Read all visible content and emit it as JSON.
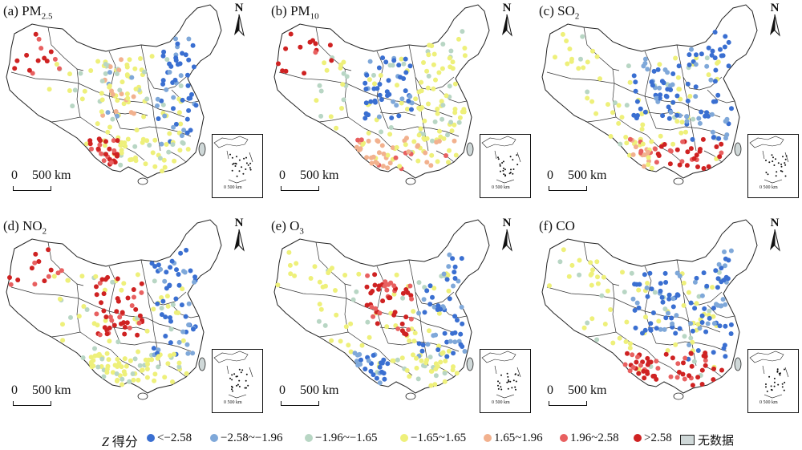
{
  "panels": [
    {
      "id": "a",
      "title_prefix": "(a) PM",
      "title_sub": "2.5",
      "scale_zero": "0",
      "scale_label": "500 km",
      "north_label": "N",
      "inset_label": "0 500 km",
      "zones": {
        "nw": "high",
        "sw": "high",
        "center": "mixed",
        "east": "low",
        "south": "neutral"
      }
    },
    {
      "id": "b",
      "title_prefix": "(b) PM",
      "title_sub": "10",
      "scale_zero": "0",
      "scale_label": "500 km",
      "north_label": "N",
      "inset_label": "0 500 km",
      "zones": {
        "nw": "high",
        "sw": "midhigh",
        "center": "low",
        "east": "neutral",
        "south": "midhigh"
      }
    },
    {
      "id": "c",
      "title_prefix": "(c) SO",
      "title_sub": "2",
      "scale_zero": "0",
      "scale_label": "500 km",
      "north_label": "N",
      "inset_label": "0 500 km",
      "zones": {
        "nw": "neutral",
        "sw": "midhigh",
        "center": "low",
        "east": "low",
        "south": "high"
      }
    },
    {
      "id": "d",
      "title_prefix": "(d) NO",
      "title_sub": "2",
      "scale_zero": "0",
      "scale_label": "500 km",
      "north_label": "N",
      "inset_label": "0 500 km",
      "zones": {
        "nw": "high",
        "sw": "neutral",
        "center": "high",
        "east": "low",
        "south": "neutral"
      }
    },
    {
      "id": "e",
      "title_prefix": "(e) O",
      "title_sub": "3",
      "scale_zero": "0",
      "scale_label": "500 km",
      "north_label": "N",
      "inset_label": "0 500 km",
      "zones": {
        "nw": "neutral",
        "sw": "low",
        "center": "high",
        "east": "low",
        "south": "neutral"
      }
    },
    {
      "id": "f",
      "title_prefix": "(f) CO",
      "title_sub": "",
      "scale_zero": "0",
      "scale_label": "500 km",
      "north_label": "N",
      "inset_label": "0 500 km",
      "zones": {
        "nw": "neutral",
        "sw": "high",
        "center": "low",
        "east": "low",
        "south": "high"
      }
    }
  ],
  "legend": {
    "title_z": "Z",
    "title_rest": " 得分",
    "items": [
      {
        "label": "<−2.58",
        "color": "#3a6fd1"
      },
      {
        "label": "−2.58~−1.96",
        "color": "#7fa8d9"
      },
      {
        "label": "−1.96~−1.65",
        "color": "#b8d6c4"
      },
      {
        "label": "−1.65~1.65",
        "color": "#eef07a"
      },
      {
        "label": "1.65~1.96",
        "color": "#f2b18e"
      },
      {
        "label": "1.96~2.58",
        "color": "#e86060"
      },
      {
        "label": ">2.58",
        "color": "#cf2222"
      }
    ],
    "nodata_label": "无数据"
  }
}
